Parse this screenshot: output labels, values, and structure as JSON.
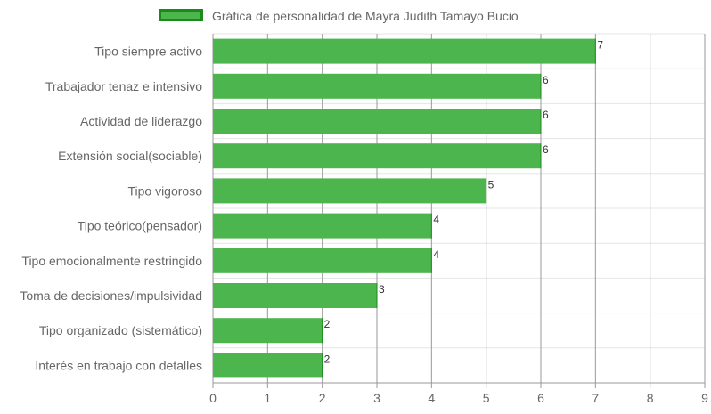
{
  "chart_data": {
    "type": "bar",
    "orientation": "horizontal",
    "legend": {
      "label": "Gráfica de personalidad de Mayra Judith Tamayo Bucio",
      "position": "top"
    },
    "categories": [
      "Tipo siempre activo",
      "Trabajador tenaz e intensivo",
      "Actividad de liderazgo",
      "Extensión social(sociable)",
      "Tipo vigoroso",
      "Tipo teórico(pensador)",
      "Tipo emocionalmente restringido",
      "Toma de decisiones/impulsividad",
      "Tipo organizado (sistemático)",
      "Interés en trabajo con detalles"
    ],
    "values": [
      7,
      6,
      6,
      6,
      5,
      4,
      4,
      3,
      2,
      2
    ],
    "xlim": [
      0,
      9
    ],
    "x_ticks": [
      0,
      1,
      2,
      3,
      4,
      5,
      6,
      7,
      8,
      9
    ],
    "grid": true,
    "colors": {
      "bar_fill": "#4db54d",
      "bar_border": "#1a8a1a",
      "vertical_grid": "#999999",
      "horizontal_grid": "#e5e5e5",
      "tick_label": "#666666",
      "data_label": "#333333"
    }
  }
}
